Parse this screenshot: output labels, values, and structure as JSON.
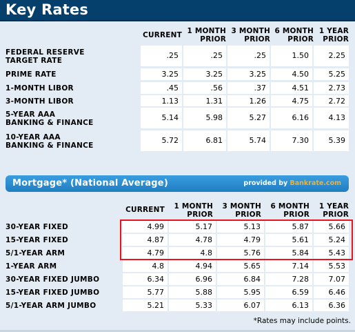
{
  "title": "Key Rates",
  "key_rates": {
    "columns": [
      "CURRENT",
      "1 MONTH\nPRIOR",
      "3 MONTH\nPRIOR",
      "6 MONTH\nPRIOR",
      "1 YEAR\nPRIOR"
    ],
    "col1": "CURRENT",
    "col2a": "1 MONTH",
    "col2b": "PRIOR",
    "col3a": "3 MONTH",
    "col3b": "PRIOR",
    "col4a": "6 MONTH",
    "col4b": "PRIOR",
    "col5a": "1 YEAR",
    "col5b": "PRIOR",
    "rows": [
      {
        "label1": "FEDERAL RESERVE",
        "label2": "TARGET RATE",
        "values": [
          ".25",
          ".25",
          ".25",
          "1.50",
          "2.25"
        ]
      },
      {
        "label1": "PRIME RATE",
        "label2": "",
        "values": [
          "3.25",
          "3.25",
          "3.25",
          "4.50",
          "5.25"
        ]
      },
      {
        "label1": "1-MONTH LIBOR",
        "label2": "",
        "values": [
          ".45",
          ".56",
          ".37",
          "4.51",
          "2.73"
        ]
      },
      {
        "label1": "3-MONTH LIBOR",
        "label2": "",
        "values": [
          "1.13",
          "1.31",
          "1.26",
          "4.75",
          "2.72"
        ]
      },
      {
        "label1": "5-YEAR AAA",
        "label2": "BANKING & FINANCE",
        "values": [
          "5.14",
          "5.98",
          "5.27",
          "6.16",
          "4.13"
        ]
      },
      {
        "label1": "10-YEAR AAA",
        "label2": "BANKING & FINANCE",
        "values": [
          "5.72",
          "6.81",
          "5.74",
          "7.30",
          "5.39"
        ]
      }
    ]
  },
  "mortgage": {
    "title": "Mortgage* (National Average)",
    "provided_by": "provided by",
    "brand": "Bankrate.com",
    "col1": "CURRENT",
    "col2a": "1 MONTH",
    "col2b": "PRIOR",
    "col3a": "3 MONTH",
    "col3b": "PRIOR",
    "col4a": "6 MONTH",
    "col4b": "PRIOR",
    "col5a": "1 YEAR",
    "col5b": "PRIOR",
    "rows": [
      {
        "label": "30-YEAR FIXED",
        "values": [
          "4.99",
          "5.17",
          "5.13",
          "5.87",
          "5.66"
        ]
      },
      {
        "label": "15-YEAR FIXED",
        "values": [
          "4.87",
          "4.78",
          "4.79",
          "5.61",
          "5.24"
        ]
      },
      {
        "label": "5/1-YEAR ARM",
        "values": [
          "4.79",
          "4.8",
          "5.76",
          "5.84",
          "5.43"
        ]
      },
      {
        "label": "1-YEAR ARM",
        "values": [
          "4.8",
          "4.94",
          "5.65",
          "7.14",
          "5.53"
        ]
      },
      {
        "label": "30-YEAR FIXED JUMBO",
        "values": [
          "6.34",
          "6.96",
          "6.84",
          "7.28",
          "7.07"
        ]
      },
      {
        "label": "15-YEAR FIXED JUMBO",
        "values": [
          "5.77",
          "5.88",
          "5.95",
          "6.59",
          "6.46"
        ]
      },
      {
        "label": "5/1-YEAR ARM JUMBO",
        "values": [
          "5.21",
          "5.33",
          "6.07",
          "6.13",
          "6.36"
        ]
      }
    ],
    "note": "*Rates may include points."
  },
  "colors": {
    "title_bg": "#053f6b",
    "page_bg": "#e3ecf4",
    "bar_blue": "#2d8fd0",
    "brand_orange": "#f2b134",
    "highlight_red": "#e8141b"
  }
}
